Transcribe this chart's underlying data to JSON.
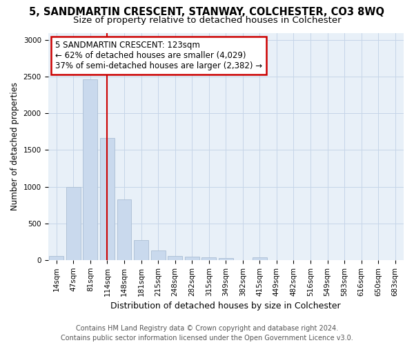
{
  "title": "5, SANDMARTIN CRESCENT, STANWAY, COLCHESTER, CO3 8WQ",
  "subtitle": "Size of property relative to detached houses in Colchester",
  "xlabel": "Distribution of detached houses by size in Colchester",
  "ylabel": "Number of detached properties",
  "bar_labels": [
    "14sqm",
    "47sqm",
    "81sqm",
    "114sqm",
    "148sqm",
    "181sqm",
    "215sqm",
    "248sqm",
    "282sqm",
    "315sqm",
    "349sqm",
    "382sqm",
    "415sqm",
    "449sqm",
    "482sqm",
    "516sqm",
    "549sqm",
    "583sqm",
    "616sqm",
    "650sqm",
    "683sqm"
  ],
  "bar_values": [
    55,
    1000,
    2460,
    1660,
    830,
    270,
    130,
    55,
    50,
    40,
    30,
    0,
    35,
    0,
    0,
    0,
    0,
    0,
    0,
    0,
    0
  ],
  "bar_color": "#c9d9ed",
  "bar_edgecolor": "#aabdd4",
  "vline_x": 3.0,
  "vline_color": "#cc0000",
  "annotation_line1": "5 SANDMARTIN CRESCENT: 123sqm",
  "annotation_line2": "← 62% of detached houses are smaller (4,029)",
  "annotation_line3": "37% of semi-detached houses are larger (2,382) →",
  "annotation_box_color": "#cc0000",
  "ylim": [
    0,
    3100
  ],
  "yticks": [
    0,
    500,
    1000,
    1500,
    2000,
    2500,
    3000
  ],
  "grid_color": "#c5d5e8",
  "bg_color": "#e8f0f8",
  "footer": "Contains HM Land Registry data © Crown copyright and database right 2024.\nContains public sector information licensed under the Open Government Licence v3.0.",
  "title_fontsize": 10.5,
  "subtitle_fontsize": 9.5,
  "xlabel_fontsize": 9,
  "ylabel_fontsize": 8.5,
  "tick_fontsize": 7.5,
  "annot_fontsize": 8.5,
  "footer_fontsize": 7
}
